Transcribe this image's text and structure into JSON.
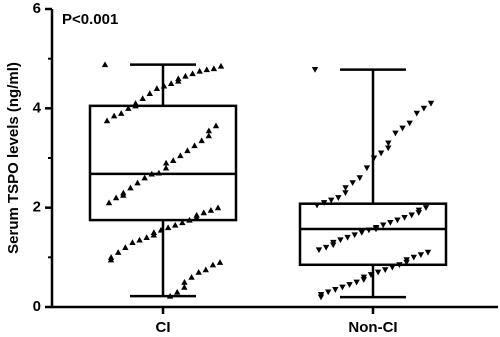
{
  "chart_data": {
    "type": "box",
    "annotation": "P<0.001",
    "y_label": "Serum TSPO levels (ng/ml)",
    "categories": [
      "CI",
      "Non-CI"
    ],
    "ylim": [
      0,
      6
    ],
    "yticks": [
      0,
      2,
      4,
      6
    ],
    "yminorticks": [
      1,
      3,
      5
    ],
    "color": "#000000",
    "boxes": [
      {
        "marker": "triangle-up",
        "whisker_low": 0.22,
        "q1": 1.75,
        "median": 2.68,
        "q3": 4.05,
        "whisker_high": 4.88,
        "points": [
          4.88,
          4.85,
          4.8,
          4.78,
          4.75,
          4.7,
          4.65,
          4.6,
          4.55,
          4.5,
          4.45,
          4.4,
          4.3,
          4.2,
          4.1,
          4.05,
          4.0,
          3.9,
          3.85,
          3.75,
          3.65,
          3.55,
          3.45,
          3.35,
          3.25,
          3.15,
          3.05,
          2.95,
          2.9,
          2.8,
          2.7,
          2.68,
          2.6,
          2.5,
          2.4,
          2.3,
          2.25,
          2.2,
          2.1,
          2.0,
          1.95,
          1.9,
          1.85,
          1.8,
          1.75,
          1.7,
          1.65,
          1.6,
          1.55,
          1.5,
          1.45,
          1.4,
          1.35,
          1.3,
          1.2,
          1.1,
          1.0,
          0.95,
          0.9,
          0.85,
          0.75,
          0.7,
          0.6,
          0.5,
          0.4,
          0.3,
          0.22
        ]
      },
      {
        "marker": "triangle-down",
        "whisker_low": 0.2,
        "q1": 0.85,
        "median": 1.57,
        "q3": 2.08,
        "whisker_high": 4.78,
        "points": [
          4.78,
          4.1,
          4.0,
          3.9,
          3.7,
          3.6,
          3.5,
          3.3,
          3.2,
          3.1,
          3.0,
          2.8,
          2.6,
          2.5,
          2.4,
          2.3,
          2.2,
          2.15,
          2.1,
          2.05,
          2.0,
          1.95,
          1.9,
          1.85,
          1.8,
          1.75,
          1.7,
          1.65,
          1.6,
          1.57,
          1.55,
          1.5,
          1.45,
          1.4,
          1.35,
          1.3,
          1.25,
          1.2,
          1.15,
          1.1,
          1.05,
          1.0,
          0.95,
          0.9,
          0.85,
          0.8,
          0.75,
          0.7,
          0.65,
          0.6,
          0.55,
          0.5,
          0.45,
          0.4,
          0.35,
          0.3,
          0.25,
          0.2
        ]
      }
    ]
  }
}
